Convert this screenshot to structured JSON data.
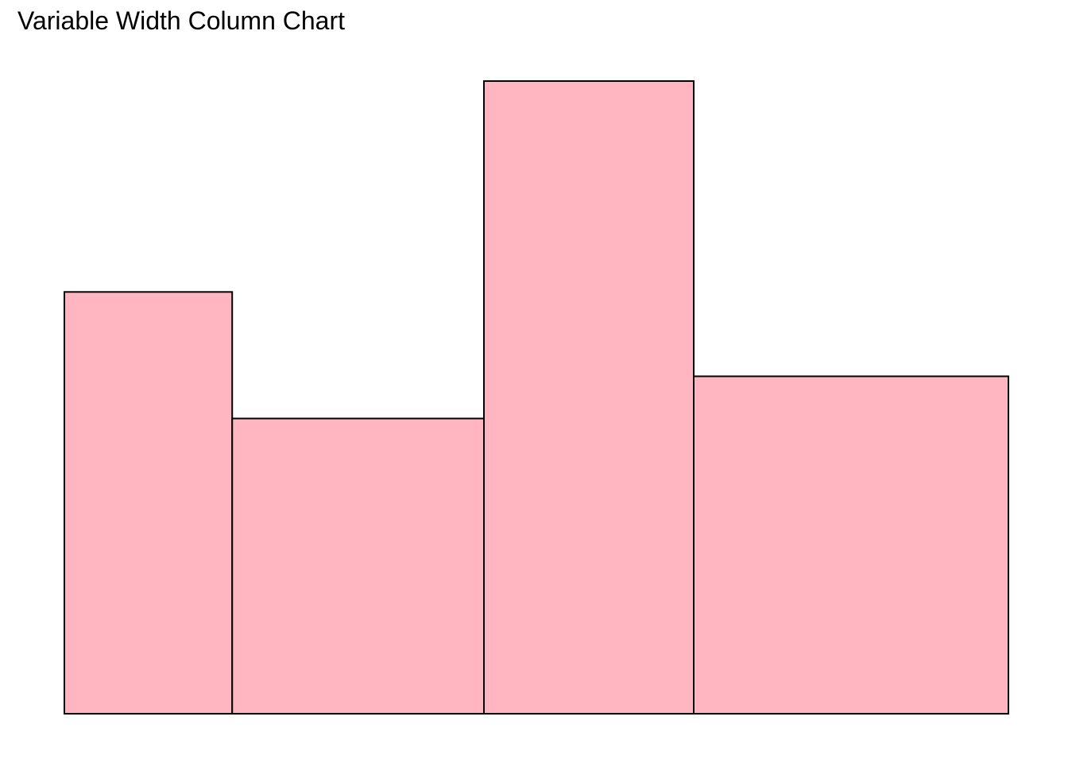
{
  "chart_data": {
    "type": "bar",
    "title": "Variable Width Column Chart",
    "xlabel": "",
    "ylabel": "",
    "bar_fill": "#ffb6c1",
    "bar_stroke": "#000000",
    "grid": false,
    "legend": "none",
    "bars": [
      {
        "width": 40,
        "value": 50
      },
      {
        "width": 60,
        "value": 35
      },
      {
        "width": 50,
        "value": 75
      },
      {
        "width": 75,
        "value": 40
      }
    ],
    "ylim": [
      0,
      75
    ]
  }
}
